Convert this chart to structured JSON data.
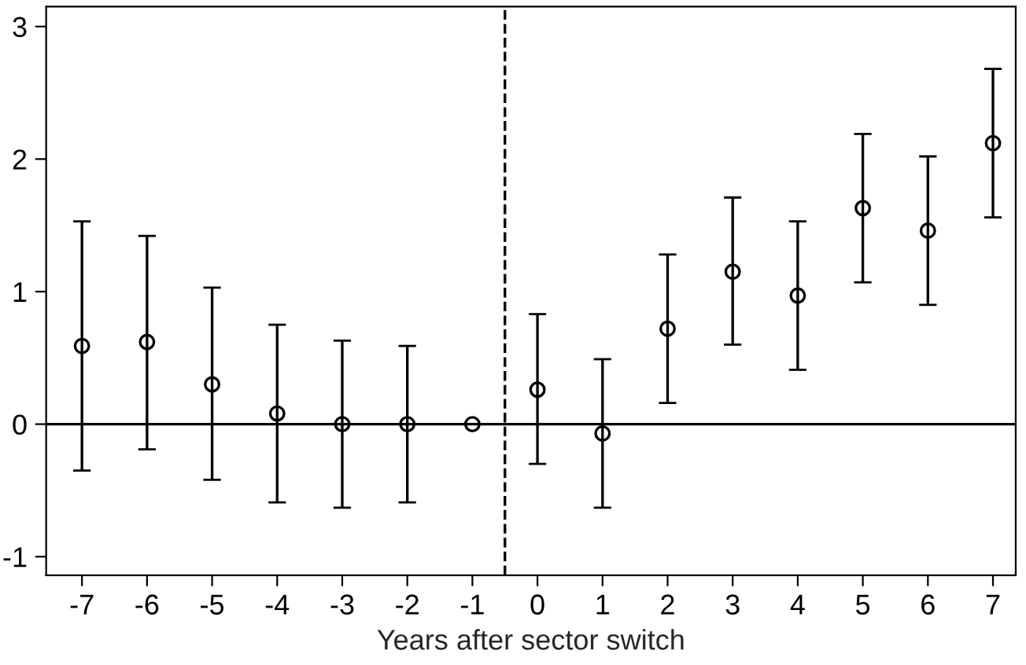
{
  "chart_data": {
    "type": "scatter",
    "xlabel": "Years after sector switch",
    "x": [
      -7,
      -6,
      -5,
      -4,
      -3,
      -2,
      -1,
      0,
      1,
      2,
      3,
      4,
      5,
      6,
      7
    ],
    "series": [
      {
        "color": "#000000",
        "values": [
          0.59,
          0.62,
          0.3,
          0.08,
          0.0,
          0.0,
          0.0,
          0.26,
          -0.07,
          0.72,
          1.15,
          0.97,
          1.63,
          1.46,
          2.12
        ],
        "errors": [
          [
            -0.35,
            1.53
          ],
          [
            -0.19,
            1.42
          ],
          [
            -0.42,
            1.03
          ],
          [
            -0.59,
            0.75
          ],
          [
            -0.63,
            0.63
          ],
          [
            -0.59,
            0.59
          ],
          null,
          [
            -0.3,
            0.83
          ],
          [
            -0.63,
            0.49
          ],
          [
            0.16,
            1.28
          ],
          [
            0.6,
            1.71
          ],
          [
            0.41,
            1.53
          ],
          [
            1.07,
            2.19
          ],
          [
            0.9,
            2.02
          ],
          [
            1.56,
            2.68
          ]
        ]
      }
    ],
    "marker": "circle",
    "grid": false,
    "xlim": [
      -7.55,
      7.35
    ],
    "xticks": [
      -7,
      -6,
      -5,
      -4,
      -3,
      -2,
      -1,
      0,
      1,
      2,
      3,
      4,
      5,
      6,
      7
    ],
    "ylim": [
      -1.14,
      3.15
    ],
    "yticks": [
      {
        "value": -1,
        "label": "-1"
      },
      0,
      1,
      2,
      3
    ],
    "ref_lines": [
      {
        "axis": "x",
        "value": -0.5,
        "line_style": "dashed",
        "color": "#000000"
      },
      {
        "axis": "y",
        "value": 0,
        "line_style": "solid",
        "color": "#000000"
      }
    ]
  }
}
